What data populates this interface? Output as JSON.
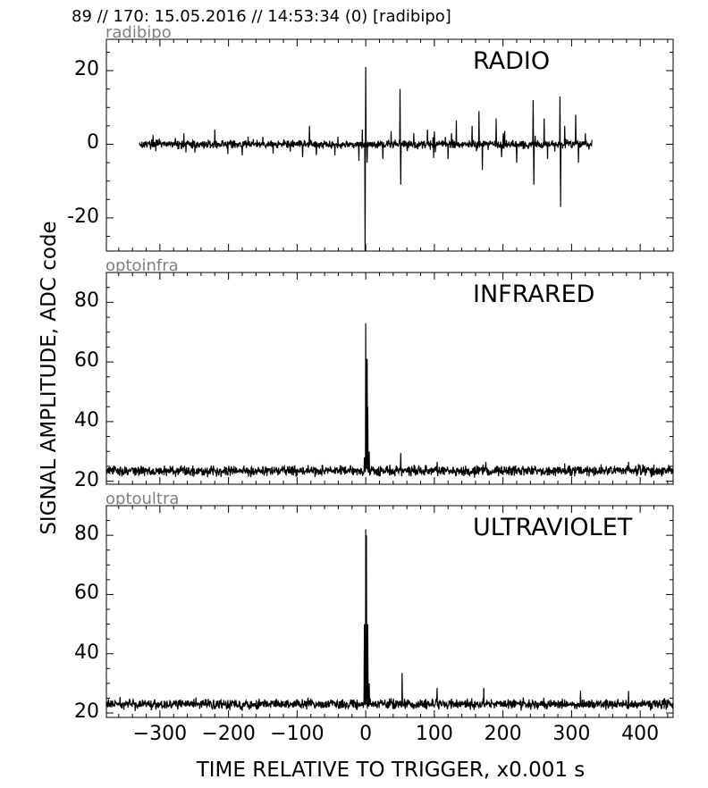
{
  "header": {
    "title": "89 // 170:   15.05.2016 // 14:53:34 (0)  [radibipo]"
  },
  "axes": {
    "xlabel": "TIME RELATIVE TO TRIGGER,   x0.001 s",
    "ylabel": "SIGNAL AMPLITUDE,  ADC code"
  },
  "chart_data": [
    {
      "type": "line",
      "source": "radibipo",
      "title": "RADIO",
      "xlim": [
        -378,
        448
      ],
      "ylim": [
        -29,
        28.5
      ],
      "xticks": [
        -300,
        -200,
        -100,
        0,
        100,
        200,
        300,
        400
      ],
      "yticks": [
        20,
        0,
        -20
      ],
      "ytick_labels": [
        "20",
        "0",
        "-20"
      ],
      "baseline": 0,
      "x_start": -330,
      "x_end": 330,
      "noise": 0.8,
      "peaks": [
        {
          "x": -310,
          "value": 2.5
        },
        {
          "x": -265,
          "value": 3
        },
        {
          "x": -220,
          "value": 4
        },
        {
          "x": -180,
          "value": -3
        },
        {
          "x": -150,
          "value": 2
        },
        {
          "x": -110,
          "value": -2
        },
        {
          "x": -92,
          "value": -3.5
        },
        {
          "x": -82,
          "value": 5
        },
        {
          "x": -45,
          "value": -3
        },
        {
          "x": -10,
          "value": -4.5
        },
        {
          "x": -5,
          "value": 4
        },
        {
          "x": -1,
          "value": -29
        },
        {
          "x": 0,
          "value": 21
        },
        {
          "x": 2,
          "value": -5
        },
        {
          "x": 25,
          "value": -4
        },
        {
          "x": 37,
          "value": 3.5
        },
        {
          "x": 50,
          "value": 15
        },
        {
          "x": 51,
          "value": -11
        },
        {
          "x": 70,
          "value": 3
        },
        {
          "x": 90,
          "value": 4
        },
        {
          "x": 100,
          "value": 3.5
        },
        {
          "x": 120,
          "value": -4
        },
        {
          "x": 125,
          "value": 3
        },
        {
          "x": 132,
          "value": 6.5
        },
        {
          "x": 155,
          "value": 5
        },
        {
          "x": 165,
          "value": 9
        },
        {
          "x": 170,
          "value": -7
        },
        {
          "x": 190,
          "value": 7
        },
        {
          "x": 198,
          "value": -3.5
        },
        {
          "x": 220,
          "value": -5
        },
        {
          "x": 244,
          "value": 12
        },
        {
          "x": 245,
          "value": -11
        },
        {
          "x": 260,
          "value": 7
        },
        {
          "x": 265,
          "value": -4
        },
        {
          "x": 283,
          "value": 13
        },
        {
          "x": 284,
          "value": -17
        },
        {
          "x": 290,
          "value": 5
        },
        {
          "x": 306,
          "value": 8
        },
        {
          "x": 310,
          "value": -5
        },
        {
          "x": 320,
          "value": 3
        }
      ]
    },
    {
      "type": "line",
      "source": "optoinfra",
      "title": "INFRARED",
      "xlim": [
        -378,
        448
      ],
      "ylim": [
        19,
        90
      ],
      "xticks": [
        -300,
        -200,
        -100,
        0,
        100,
        200,
        300,
        400
      ],
      "yticks": [
        80,
        60,
        40,
        20
      ],
      "ytick_labels": [
        "80",
        "60",
        "40",
        "20"
      ],
      "baseline": 23.5,
      "x_start": -378,
      "x_end": 448,
      "noise": 1.3,
      "peaks": [
        {
          "x": -2,
          "value": 28
        },
        {
          "x": 0,
          "value": 73
        },
        {
          "x": 1,
          "value": 61
        },
        {
          "x": 2,
          "value": 61
        },
        {
          "x": 3,
          "value": 45
        },
        {
          "x": 5,
          "value": 30
        },
        {
          "x": 51,
          "value": 29.5
        },
        {
          "x": 104,
          "value": 26.5
        },
        {
          "x": 175,
          "value": 26.5
        },
        {
          "x": 290,
          "value": 26
        },
        {
          "x": 383,
          "value": 26.5
        }
      ]
    },
    {
      "type": "line",
      "source": "optoultra",
      "title": "ULTRAVIOLET",
      "xlim": [
        -378,
        448
      ],
      "ylim": [
        18.5,
        90
      ],
      "xticks": [
        -300,
        -200,
        -100,
        0,
        100,
        200,
        300,
        400
      ],
      "xtick_labels": [
        "−300",
        "−200",
        "−100",
        "0",
        "100",
        "200",
        "300",
        "400"
      ],
      "yticks": [
        80,
        60,
        40,
        20
      ],
      "ytick_labels": [
        "80",
        "60",
        "40",
        "20"
      ],
      "baseline": 23,
      "x_start": -378,
      "x_end": 448,
      "noise": 1.3,
      "peaks": [
        {
          "x": -2,
          "value": 50
        },
        {
          "x": 0,
          "value": 82
        },
        {
          "x": 1,
          "value": 80
        },
        {
          "x": 3,
          "value": 50
        },
        {
          "x": 5,
          "value": 30
        },
        {
          "x": 53,
          "value": 33.5
        },
        {
          "x": 104,
          "value": 28.5
        },
        {
          "x": 172,
          "value": 28.5
        },
        {
          "x": 313,
          "value": 27.5
        },
        {
          "x": 383,
          "value": 27.5
        }
      ]
    }
  ]
}
